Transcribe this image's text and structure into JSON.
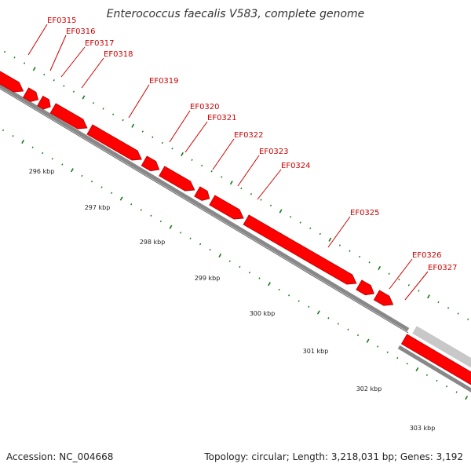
{
  "title": "Enterococcus faecalis V583, complete genome",
  "footer": {
    "accession": "Accession: NC_004668",
    "summary": "Topology: circular; Length: 3,218,031 bp; Genes: 3,192"
  },
  "colors": {
    "gene_fill": "#ff0000",
    "gene_dark": "#b00000",
    "gene_label": "#cc0000",
    "backbone": "#888888",
    "backbone_dark": "#666666",
    "next_track": "#c8c8c8",
    "tick_minor": "#1f7a1f",
    "tick_major": "#1f7a1f"
  },
  "scale_labels": [
    "296 kbp",
    "297 kbp",
    "298 kbp",
    "299 kbp",
    "300 kbp",
    "301 kbp",
    "302 kbp",
    "303 kbp"
  ],
  "genes": [
    {
      "label": "EF0315"
    },
    {
      "label": "EF0316"
    },
    {
      "label": "EF0317"
    },
    {
      "label": "EF0318"
    },
    {
      "label": "EF0319"
    },
    {
      "label": "EF0320"
    },
    {
      "label": "EF0321"
    },
    {
      "label": "EF0322"
    },
    {
      "label": "EF0323"
    },
    {
      "label": "EF0324"
    },
    {
      "label": "EF0325"
    },
    {
      "label": "EF0326"
    },
    {
      "label": "EF0327"
    }
  ]
}
